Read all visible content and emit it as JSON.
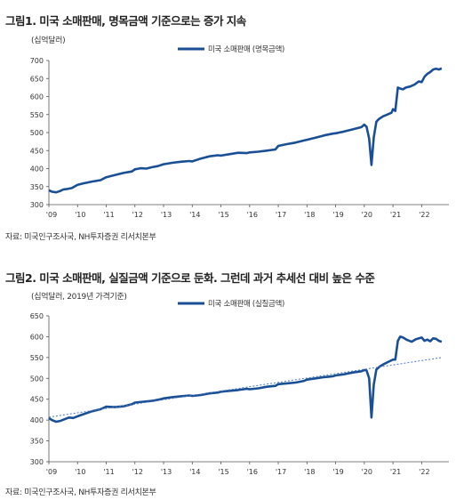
{
  "charts": [
    {
      "fig_title": "그림1. 미국 소매판매, 명목금액 기준으로는 증가 지속",
      "unit": "(십억달러)",
      "source": "자료: 미국인구조사국, NH투자증권 리서치본부",
      "legend": "미국 소매판매 (명목금액)"
    },
    {
      "fig_title": "그림2. 미국 소매판매, 실질금액 기준으로 둔화. 그런데 과거 추세선 대비 높은 수준",
      "unit": "(십억달러, 2019년 가격기준)",
      "source": "자료: 미국인구조사국, NH투자증권 리서치본부",
      "legend": "미국 소매판매 (실질금액)"
    }
  ],
  "chart_data": [
    {
      "type": "line",
      "x_ticks": [
        "'09",
        "'10",
        "'11",
        "'12",
        "'13",
        "'14",
        "'15",
        "'16",
        "'17",
        "'18",
        "'19",
        "'20",
        "'21",
        "'22"
      ],
      "ylim": [
        300,
        700
      ],
      "y_ticks": [
        300,
        350,
        400,
        450,
        500,
        550,
        600,
        650,
        700
      ],
      "color": "#1a4f96",
      "series": [
        {
          "name": "미국 소매판매 (명목금액)",
          "x": [
            2009.0,
            2009.1,
            2009.25,
            2009.4,
            2009.5,
            2009.6,
            2009.8,
            2010.0,
            2010.2,
            2010.5,
            2010.8,
            2011.0,
            2011.3,
            2011.6,
            2011.9,
            2012.0,
            2012.2,
            2012.4,
            2012.6,
            2012.8,
            2013.0,
            2013.3,
            2013.6,
            2013.9,
            2014.0,
            2014.3,
            2014.6,
            2014.9,
            2015.0,
            2015.3,
            2015.6,
            2015.9,
            2016.0,
            2016.3,
            2016.6,
            2016.9,
            2017.0,
            2017.3,
            2017.6,
            2017.9,
            2018.0,
            2018.3,
            2018.6,
            2018.9,
            2019.0,
            2019.3,
            2019.6,
            2019.9,
            2020.0,
            2020.08,
            2020.17,
            2020.25,
            2020.33,
            2020.42,
            2020.5,
            2020.65,
            2020.8,
            2020.95,
            2021.0,
            2021.08,
            2021.17,
            2021.25,
            2021.35,
            2021.45,
            2021.6,
            2021.75,
            2021.9,
            2022.0,
            2022.1,
            2022.2,
            2022.3,
            2022.4,
            2022.5,
            2022.6,
            2022.7
          ],
          "y": [
            340,
            336,
            334,
            338,
            342,
            343,
            346,
            355,
            359,
            364,
            368,
            376,
            382,
            388,
            392,
            398,
            401,
            400,
            404,
            407,
            412,
            416,
            419,
            421,
            420,
            428,
            434,
            437,
            436,
            440,
            444,
            443,
            445,
            447,
            450,
            453,
            463,
            468,
            472,
            478,
            480,
            486,
            492,
            497,
            498,
            503,
            509,
            515,
            522,
            516,
            483,
            410,
            487,
            530,
            537,
            545,
            550,
            555,
            565,
            560,
            625,
            622,
            620,
            625,
            628,
            633,
            642,
            640,
            655,
            663,
            668,
            675,
            677,
            675,
            678
          ]
        }
      ]
    },
    {
      "type": "line",
      "x_ticks": [
        "'09",
        "'10",
        "'11",
        "'12",
        "'13",
        "'14",
        "'15",
        "'16",
        "'17",
        "'18",
        "'19",
        "'20",
        "'21",
        "'22"
      ],
      "ylim": [
        300,
        650
      ],
      "y_ticks": [
        300,
        350,
        400,
        450,
        500,
        550,
        600,
        650
      ],
      "color": "#1a4f96",
      "trend_color": "#4a78c0",
      "series": [
        {
          "name": "미국 소매판매 (실질금액)",
          "x": [
            2009.0,
            2009.1,
            2009.25,
            2009.4,
            2009.55,
            2009.7,
            2009.85,
            2010.0,
            2010.2,
            2010.5,
            2010.8,
            2011.0,
            2011.3,
            2011.6,
            2011.9,
            2012.0,
            2012.3,
            2012.6,
            2012.9,
            2013.0,
            2013.3,
            2013.6,
            2013.9,
            2014.0,
            2014.3,
            2014.6,
            2014.9,
            2015.0,
            2015.3,
            2015.6,
            2015.9,
            2016.0,
            2016.3,
            2016.6,
            2016.9,
            2017.0,
            2017.3,
            2017.6,
            2017.9,
            2018.0,
            2018.3,
            2018.6,
            2018.9,
            2019.0,
            2019.3,
            2019.6,
            2019.9,
            2020.0,
            2020.08,
            2020.17,
            2020.25,
            2020.33,
            2020.42,
            2020.55,
            2020.7,
            2020.85,
            2021.0,
            2021.08,
            2021.17,
            2021.25,
            2021.35,
            2021.5,
            2021.65,
            2021.8,
            2022.0,
            2022.1,
            2022.2,
            2022.3,
            2022.4,
            2022.5,
            2022.6,
            2022.7
          ],
          "y": [
            405,
            400,
            396,
            398,
            402,
            406,
            405,
            409,
            414,
            421,
            426,
            432,
            431,
            433,
            438,
            442,
            444,
            446,
            450,
            452,
            455,
            457,
            459,
            458,
            460,
            464,
            466,
            468,
            470,
            472,
            475,
            474,
            476,
            480,
            482,
            486,
            488,
            490,
            494,
            497,
            500,
            503,
            505,
            507,
            510,
            514,
            517,
            520,
            519,
            500,
            406,
            485,
            521,
            529,
            535,
            540,
            545,
            545,
            590,
            600,
            598,
            592,
            588,
            594,
            598,
            590,
            593,
            589,
            596,
            595,
            590,
            588
          ]
        },
        {
          "name": "",
          "x": [
            2009.0,
            2022.7
          ],
          "y": [
            407,
            550
          ]
        }
      ]
    }
  ]
}
